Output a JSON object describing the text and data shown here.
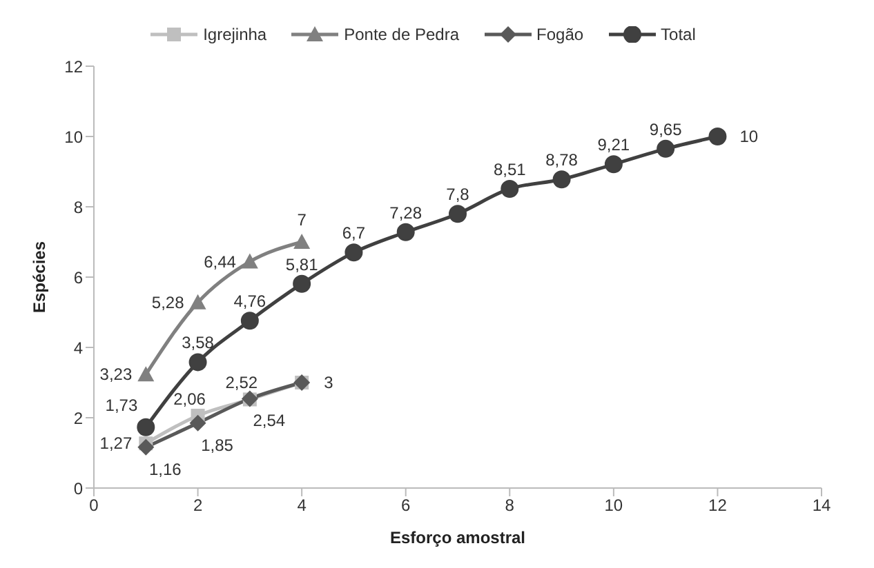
{
  "chart_data": {
    "type": "line",
    "xlabel": "Esforço amostral",
    "ylabel": "Espécies",
    "xlim": [
      0,
      14
    ],
    "xticks": [
      0,
      2,
      4,
      6,
      8,
      10,
      12,
      14
    ],
    "ylim": [
      0,
      12
    ],
    "yticks": [
      0,
      2,
      4,
      6,
      8,
      10,
      12
    ],
    "grid": false,
    "legend": "top",
    "line_style": "solid",
    "series": [
      {
        "name": "Igrejinha",
        "color": "#bfbfbf",
        "marker": "square",
        "x": [
          1,
          2,
          3,
          4
        ],
        "values": [
          1.27,
          2.06,
          2.52,
          3
        ],
        "value_labels": [
          "1,27",
          "2,06",
          "2,52",
          "3"
        ]
      },
      {
        "name": "Ponte de Pedra",
        "color": "#808080",
        "marker": "triangle",
        "x": [
          1,
          2,
          3,
          4
        ],
        "values": [
          3.23,
          5.28,
          6.44,
          7
        ],
        "value_labels": [
          "3,23",
          "5,28",
          "6,44",
          "7"
        ]
      },
      {
        "name": "Fogão",
        "color": "#595959",
        "marker": "diamond",
        "x": [
          1,
          2,
          3,
          4
        ],
        "values": [
          1.16,
          1.85,
          2.54,
          3
        ],
        "value_labels": [
          "1,16",
          "1,85",
          "2,54",
          null
        ]
      },
      {
        "name": "Total",
        "color": "#404040",
        "marker": "circle",
        "x": [
          1,
          2,
          3,
          4,
          5,
          6,
          7,
          8,
          9,
          10,
          11,
          12
        ],
        "values": [
          1.73,
          3.58,
          4.76,
          5.81,
          6.7,
          7.28,
          7.8,
          8.51,
          8.78,
          9.21,
          9.65,
          10
        ],
        "value_labels": [
          "1,73",
          "3,58",
          "4,76",
          "5,81",
          "6,7",
          "7,28",
          "7,8",
          "8,51",
          "8,78",
          "9,21",
          "9,65",
          "10"
        ]
      }
    ]
  }
}
